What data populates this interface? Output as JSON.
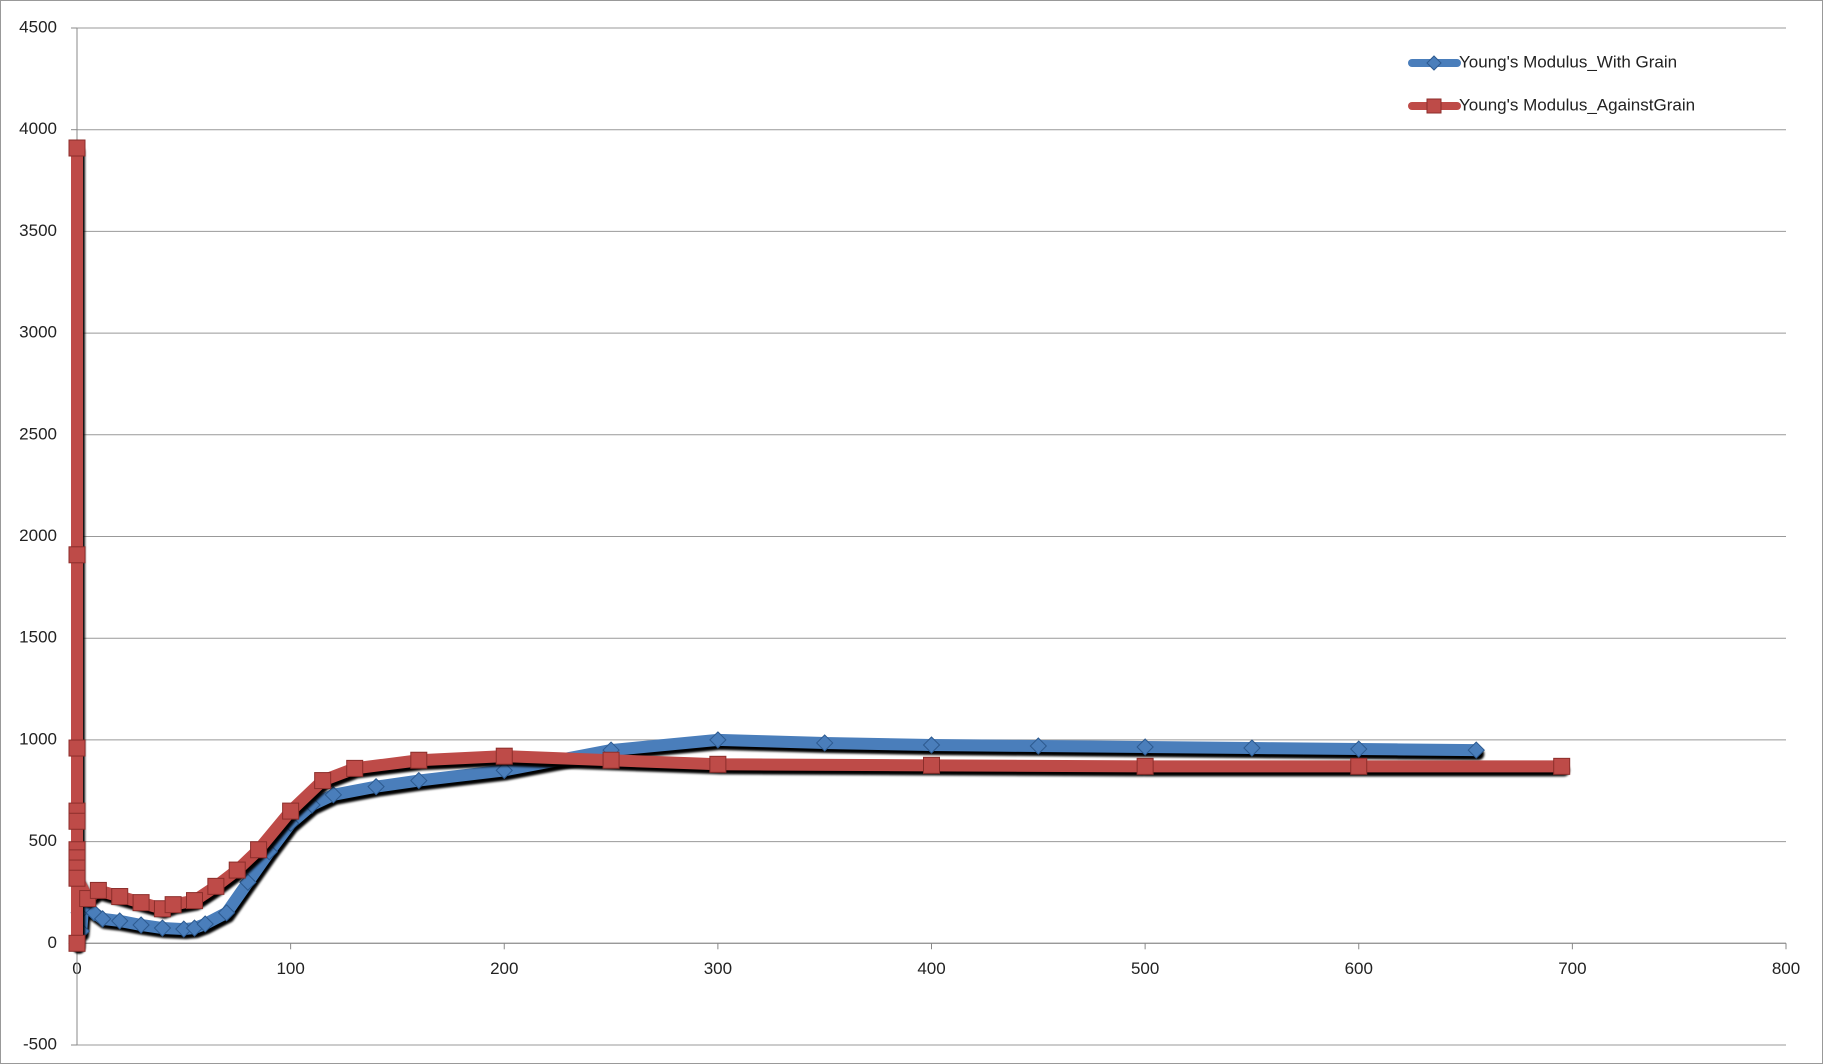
{
  "chart_data": {
    "type": "line",
    "xlim": [
      0,
      800
    ],
    "xticks": [
      0,
      100,
      200,
      300,
      400,
      500,
      600,
      700,
      800
    ],
    "ylim": [
      -500,
      4500
    ],
    "yticks": [
      -500,
      0,
      500,
      1000,
      1500,
      2000,
      2500,
      3000,
      3500,
      4000,
      4500
    ],
    "grid": true,
    "legend": "top-right",
    "series": [
      {
        "name": "Young's Modulus_With Grain",
        "color": "#4a7ebb",
        "marker": "diamond",
        "x": [
          0,
          1,
          2,
          3,
          5,
          8,
          12,
          20,
          30,
          40,
          50,
          55,
          60,
          70,
          80,
          90,
          100,
          110,
          120,
          140,
          160,
          200,
          250,
          300,
          350,
          400,
          450,
          500,
          550,
          600,
          655
        ],
        "values": [
          0,
          150,
          60,
          200,
          180,
          150,
          120,
          110,
          90,
          75,
          70,
          75,
          95,
          150,
          300,
          450,
          590,
          680,
          730,
          770,
          800,
          850,
          950,
          1000,
          985,
          975,
          970,
          965,
          960,
          955,
          950
        ]
      },
      {
        "name": "Young's Modulus_AgainstGrain",
        "color": "#be4b48",
        "marker": "square",
        "x": [
          0,
          0,
          0,
          0,
          0,
          0,
          0,
          0,
          0,
          0,
          5,
          10,
          20,
          30,
          40,
          45,
          55,
          65,
          75,
          85,
          100,
          115,
          130,
          160,
          200,
          250,
          300,
          400,
          500,
          600,
          695
        ],
        "values": [
          0,
          3910,
          1910,
          960,
          650,
          600,
          460,
          420,
          370,
          320,
          220,
          260,
          230,
          200,
          170,
          190,
          210,
          280,
          360,
          460,
          650,
          800,
          860,
          900,
          920,
          900,
          880,
          875,
          870,
          870,
          870
        ]
      }
    ]
  }
}
